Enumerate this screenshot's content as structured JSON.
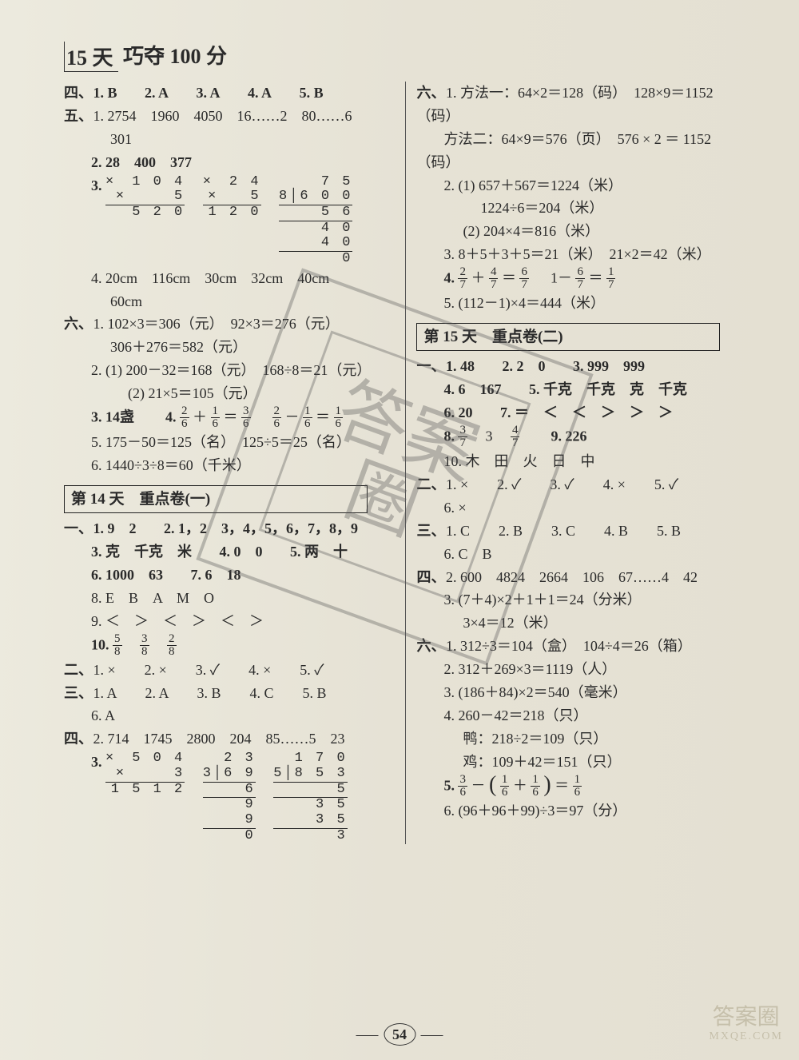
{
  "page_number": "54",
  "title_prefix": "15 天",
  "title_rest": "巧夺 100 分",
  "watermark_text": "答案圈",
  "corner_mark_top": "答案圈",
  "corner_mark_bottom": "MXQE.COM",
  "left": {
    "s4": {
      "label": "四、",
      "q1": "1. B",
      "q2": "2. A",
      "q3": "3. A",
      "q4": "4. A",
      "q5": "5. B"
    },
    "s5": {
      "label": "五、",
      "q1a": "1. 2754　1960　4050　16……2　80……6",
      "q1b": "301",
      "q2": "2. 28　400　377",
      "q3label": "3.",
      "mul1_l1": "×　1 0 4",
      "mul1_l2": "×　　　5",
      "mul1_l3": "　5 2 0",
      "mul2_l1": "×　2 4",
      "mul2_l2": "×　　5",
      "mul2_l3": "1 2 0",
      "div1_top": "　7 5",
      "div1_dd": "8│6 0 0",
      "div1_a": "5 6",
      "div1_b": "　4 0",
      "div1_c": "　4 0",
      "div1_d": "　　0",
      "q4a": "4. 20cm　116cm　30cm　32cm　40cm",
      "q4b": "60cm"
    },
    "s6": {
      "label": "六、",
      "q1a": "1. 102×3＝306（元）　92×3＝276（元）",
      "q1b": "306＋276＝582（元）",
      "q2a": "2. (1) 200－32＝168（元）　168÷8＝21（元）",
      "q2b": "(2) 21×5＝105（元）",
      "q3": "3. 14盏",
      "q4a": "4.",
      "q5": "5. 175－50＝125（名）　125÷5＝25（名）",
      "q6": "6. 1440÷3÷8＝60（千米）"
    },
    "day14": {
      "header": "第 14 天　重点卷(一)",
      "s1": {
        "label": "一、",
        "q1": "1. 9　2",
        "q2": "2. 1，2　3，4，5，6，7，8，9",
        "q3": "3. 克　千克　米",
        "q4": "4. 0　0",
        "q5": "5. 两　十",
        "q6": "6. 1000　63",
        "q7": "7. 6　18",
        "q8": "8. E　B　A　M　O",
        "q9": "9. ＜　＞　＜　＞　＜　＞",
        "q10": "10."
      },
      "s2": {
        "label": "二、",
        "q": "1. ×　　2. ×　　3. ✓　　4. ×　　5. ✓"
      },
      "s3": {
        "label": "三、",
        "q1": "1. A　　2. A　　3. B　　4. C　　5. B",
        "q6": "6. A"
      },
      "s4": {
        "label": "四、",
        "q2": "2. 714　1745　2800　204　85……5　23",
        "q3label": "3.",
        "m1l1": "×　5 0 4",
        "m1l2": "×　　　3",
        "m1l3": "1 5 1 2",
        "d2top": "　2 3",
        "d2dd": "3│6 9",
        "d2a": "6",
        "d2b": "　9",
        "d2c": "　9",
        "d2d": "　0",
        "d3top": "　1 7 0",
        "d3dd": "5│8 5 3",
        "d3a": "5",
        "d3b": "3 5",
        "d3c": "3 5",
        "d3d": "　　3"
      }
    }
  },
  "right": {
    "s6": {
      "label": "六、",
      "q1a": "1. 方法一：64×2＝128（码）　128×9＝1152",
      "q1b": "（码）",
      "q1c": "方法二：64×9＝576（页）　576 × 2 ＝ 1152",
      "q1d": "（码）",
      "q2a": "2. (1) 657＋567＝1224（米）",
      "q2b": "1224÷6＝204（米）",
      "q2c": "(2) 204×4＝816（米）",
      "q3": "3. 8＋5＋3＋5＝21（米）　21×2＝42（米）",
      "q4": "4.",
      "q5": "5. (112－1)×4＝444（米）"
    },
    "day15": {
      "header": "第 15 天　重点卷(二)",
      "s1": {
        "label": "一、",
        "q1": "1. 48",
        "q2": "2. 2　0",
        "q3": "3. 999　999",
        "q4": "4. 6　167",
        "q5": "5. 千克　千克　克　千克",
        "q6": "6. 20",
        "q7": "7. ＝　＜　＜　＞　＞　＞",
        "q8a": "8.",
        "q8b": "　3　",
        "q9": "9. 226",
        "q10": "10. 木　田　火　日　中"
      },
      "s2": {
        "label": "二、",
        "q15": "1. ×　　2. ✓　　3. ✓　　4. ×　　5. ✓",
        "q6": "6. ×"
      },
      "s3": {
        "label": "三、",
        "q15": "1. C　　2. B　　3. C　　4. B　　5. B",
        "q6": "6. C　B"
      },
      "s4": {
        "label": "四、",
        "q2": "2. 600　4824　2664　106　67……4　42",
        "q3a": "3. (7＋4)×2＋1＋1＝24（分米）",
        "q3b": "3×4＝12（米）"
      },
      "s6": {
        "label": "六、",
        "q1": "1. 312÷3＝104（盒）　104÷4＝26（箱）",
        "q2": "2. 312＋269×3＝1119（人）",
        "q3": "3. (186＋84)×2＝540（毫米）",
        "q4a": "4. 260－42＝218（只）",
        "q4b": "鸭：218÷2＝109（只）",
        "q4c": "鸡：109＋42＝151（只）",
        "q5": "5.",
        "q6": "6. (96＋96＋99)÷3＝97（分）"
      }
    }
  },
  "fractions": {
    "L_s6_q4": {
      "a_n": "2",
      "a_d": "6",
      "plus": "＋",
      "b_n": "1",
      "b_d": "6",
      "eq": "＝",
      "c_n": "3",
      "c_d": "6",
      "sp": "　",
      "d_n": "2",
      "d_d": "6",
      "minus": "－",
      "e_n": "1",
      "e_d": "6",
      "eq2": "＝",
      "f_n": "1",
      "f_d": "6"
    },
    "L_d14_q10": {
      "a_n": "5",
      "a_d": "8",
      "b_n": "3",
      "b_d": "8",
      "c_n": "2",
      "c_d": "8"
    },
    "R_s6_q4": {
      "a_n": "2",
      "a_d": "7",
      "plus": "＋",
      "b_n": "4",
      "b_d": "7",
      "eq": "＝",
      "c_n": "6",
      "c_d": "7",
      "sp": "　",
      "one": "1－",
      "d_n": "6",
      "d_d": "7",
      "eq2": "＝",
      "e_n": "1",
      "e_d": "7"
    },
    "R_d15_q8": {
      "a_n": "3",
      "a_d": "7",
      "b_n": "4",
      "b_d": "7"
    },
    "R_d15_q5": {
      "a_n": "3",
      "a_d": "6",
      "minus": "－",
      "lp": "(",
      "b_n": "1",
      "b_d": "6",
      "plus": "＋",
      "c_n": "1",
      "c_d": "6",
      "rp": ")",
      "eq": "＝",
      "d_n": "1",
      "d_d": "6"
    }
  },
  "colors": {
    "bg": "#e8e4da",
    "text": "#2a2a2a",
    "rule": "#222222",
    "watermark": "#555555"
  }
}
